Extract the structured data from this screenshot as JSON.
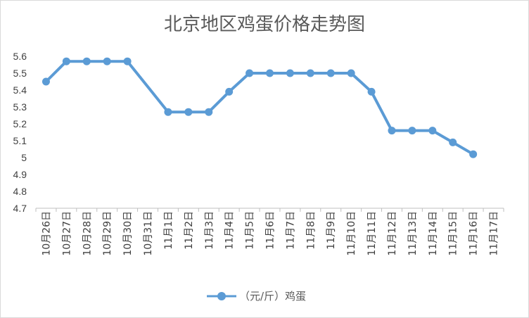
{
  "chart_data": {
    "type": "line",
    "title": "北京地区鸡蛋价格走势图",
    "xlabel": "",
    "ylabel": "",
    "ylim": [
      4.7,
      5.6
    ],
    "yticks": [
      "4.7",
      "4.8",
      "4.9",
      "5",
      "5.1",
      "5.2",
      "5.3",
      "5.4",
      "5.5",
      "5.6"
    ],
    "grid": false,
    "legend_position": "bottom",
    "color": "#5b9bd5",
    "categories": [
      "10月26日",
      "10月27日",
      "10月28日",
      "10月29日",
      "10月30日",
      "10月31日",
      "11月1日",
      "11月2日",
      "11月3日",
      "11月4日",
      "11月5日",
      "11月6日",
      "11月7日",
      "11月8日",
      "11月9日",
      "11月10日",
      "11月11日",
      "11月12日",
      "11月13日",
      "11月14日",
      "11月15日",
      "11月16日",
      "11月17日"
    ],
    "series": [
      {
        "name": "（元/斤）鸡蛋",
        "values": [
          5.45,
          5.57,
          5.57,
          5.57,
          5.57,
          null,
          5.27,
          5.27,
          5.27,
          5.39,
          5.5,
          5.5,
          5.5,
          5.5,
          5.5,
          5.5,
          5.39,
          5.16,
          5.16,
          5.16,
          5.09,
          5.02,
          null
        ]
      }
    ]
  }
}
